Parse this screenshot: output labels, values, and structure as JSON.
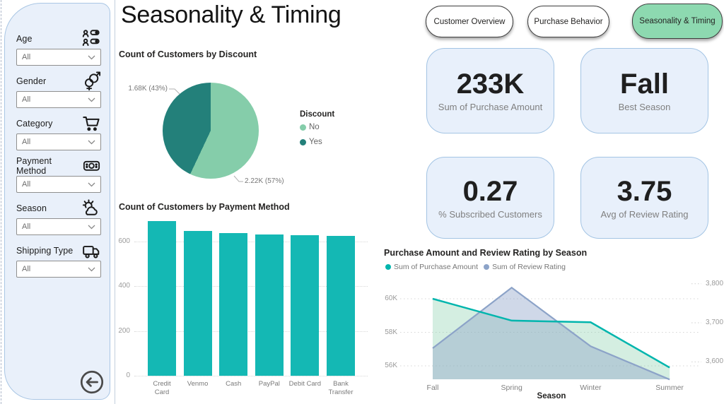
{
  "page": {
    "title": "Seasonality & Timing"
  },
  "sidebar": {
    "filters": [
      {
        "label": "Age",
        "icon": "people-icon",
        "value": "All"
      },
      {
        "label": "Gender",
        "icon": "gender-icon",
        "value": "All"
      },
      {
        "label": "Category",
        "icon": "cart-icon",
        "value": "All"
      },
      {
        "label": "Payment Method",
        "icon": "banknote-icon",
        "value": "All"
      },
      {
        "label": "Season",
        "icon": "weather-icon",
        "value": "All"
      },
      {
        "label": "Shipping Type",
        "icon": "truck-icon",
        "value": "All"
      }
    ]
  },
  "nav": {
    "tabs": [
      {
        "label": "Customer Overview",
        "active": false
      },
      {
        "label": "Purchase Behavior",
        "active": false
      },
      {
        "label": "Seasonality & Timing",
        "active": true
      }
    ]
  },
  "kpis": [
    {
      "value": "233K",
      "label": "Sum of Purchase Amount"
    },
    {
      "value": "Fall",
      "label": "Best Season"
    },
    {
      "value": "0.27",
      "label": "% Subscribed Customers"
    },
    {
      "value": "3.75",
      "label": "Avg of Review Rating"
    }
  ],
  "colors": {
    "teal": "#14b8b4",
    "pie_no": "#85cdaa",
    "pie_yes": "#23807a",
    "line_purchase": "#00b5ad",
    "line_rating": "#8ca3c8",
    "area_purchase": "rgba(133,205,170,0.35)",
    "area_rating": "rgba(140,163,200,0.42)",
    "active_tab_green": "#8dd9b0",
    "card_bg": "#e8f0fb"
  },
  "chart_data": [
    {
      "type": "pie",
      "title": "Count of Customers by Discount",
      "legend_title": "Discount",
      "legend_position": "right",
      "slices": [
        {
          "label": "No",
          "value": 2220,
          "display": "2.22K (57%)",
          "percent": 57,
          "color": "#85cdaa"
        },
        {
          "label": "Yes",
          "value": 1680,
          "display": "1.68K (43%)",
          "percent": 43,
          "color": "#23807a"
        }
      ]
    },
    {
      "type": "bar",
      "title": "Count of Customers by Payment Method",
      "categories": [
        "Credit Card",
        "Venmo",
        "Cash",
        "PayPal",
        "Debit Card",
        "Bank Transfer"
      ],
      "values": [
        690,
        645,
        638,
        630,
        627,
        623
      ],
      "xlabel": "",
      "ylabel": "",
      "ylim": [
        0,
        720
      ],
      "yticks": [
        0,
        200,
        400,
        600
      ],
      "grid": true,
      "bar_color": "#14b8b4"
    },
    {
      "type": "area",
      "title": "Purchase Amount and Review Rating by Season",
      "xlabel": "Season",
      "categories": [
        "Fall",
        "Spring",
        "Winter",
        "Summer"
      ],
      "series": [
        {
          "name": "Sum of Purchase Amount",
          "axis": "left",
          "color": "#00b5ad",
          "fill": "rgba(133,205,170,0.35)",
          "values": [
            60000,
            58700,
            58600,
            55900
          ]
        },
        {
          "name": "Sum of Review Rating",
          "axis": "right",
          "color": "#8ca3c8",
          "fill": "rgba(140,163,200,0.42)",
          "values": [
            3635,
            3790,
            3640,
            3555
          ]
        }
      ],
      "y_left": {
        "ticks": [
          "60K",
          "58K",
          "56K"
        ],
        "tick_values": [
          60000,
          58000,
          56000
        ],
        "lim": [
          55200,
          61300
        ]
      },
      "y_right": {
        "ticks": [
          "3,800",
          "3,700",
          "3,600"
        ],
        "tick_values": [
          3800,
          3700,
          3600
        ],
        "lim": [
          3550,
          3825
        ]
      },
      "grid": true,
      "legend_position": "top"
    }
  ]
}
